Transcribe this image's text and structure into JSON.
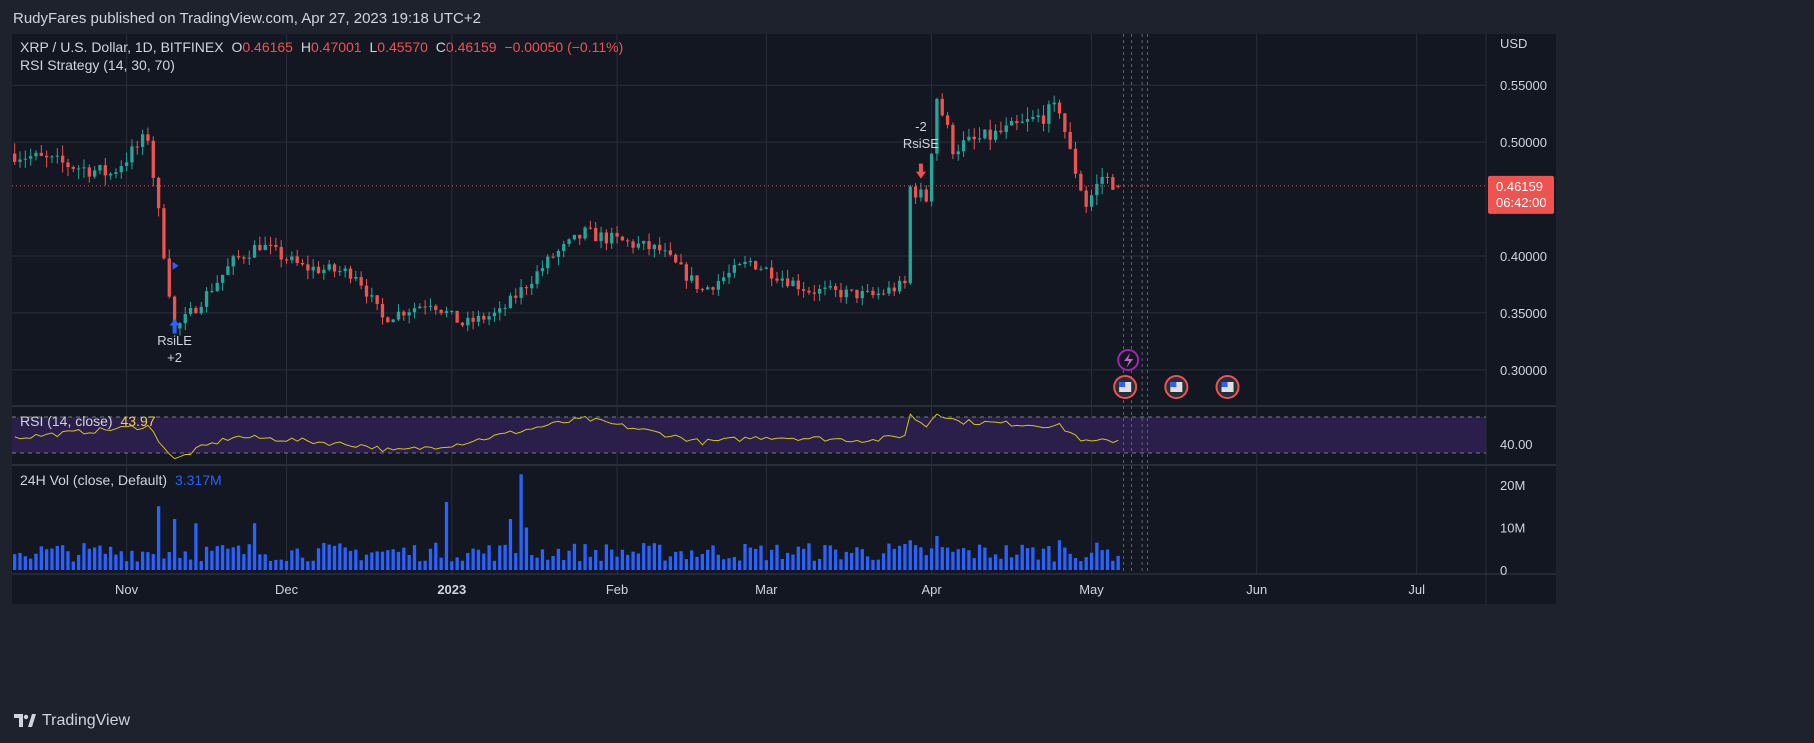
{
  "header": {
    "published": "RudyFares published on TradingView.com, Apr 27, 2023 19:18 UTC+2"
  },
  "footer": {
    "logo_text": "TradingView"
  },
  "colors": {
    "background": "#131722",
    "frame": "#1e222d",
    "grid": "#2a2e39",
    "up": "#26a69a",
    "down": "#ef5350",
    "rsi_line": "#d4c31a",
    "rsi_band": "#2a1f4a",
    "volume": "#2962ff"
  },
  "legend": {
    "symbol": "XRP / U.S. Dollar, 1D, BITFINEX",
    "o_label": "O",
    "o_value": "0.46165",
    "h_label": "H",
    "h_value": "0.47001",
    "l_label": "L",
    "l_value": "0.45570",
    "c_label": "C",
    "c_value": "0.46159",
    "change": "−0.00050 (−0.11%)",
    "strategy": "RSI Strategy (14, 30, 70)"
  },
  "rsi_panel": {
    "label": "RSI (14, close)",
    "value": "43.97"
  },
  "volume_panel": {
    "label": "24H Vol (close, Default)",
    "value": "3.317M"
  },
  "price_label": {
    "price": "0.46159",
    "countdown": "06:42:00"
  },
  "signals": {
    "long_label": "RsiLE",
    "long_qty": "+2",
    "short_label": "RsiSE",
    "short_qty": "-2"
  },
  "chart_data": {
    "type": "candlestick",
    "title": "XRP / U.S. Dollar, 1D, BITFINEX",
    "currency": "USD",
    "price_axis_ticks": [
      "0.55000",
      "0.50000",
      "0.40000",
      "0.35000",
      "0.30000"
    ],
    "price_axis_tick_values": [
      0.55,
      0.5,
      0.4,
      0.35,
      0.3
    ],
    "price_range": [
      0.27,
      0.595
    ],
    "x_tick_labels": [
      "Nov",
      "Dec",
      "2023",
      "Feb",
      "Mar",
      "Apr",
      "May",
      "Jun",
      "Jul"
    ],
    "x_range_days": [
      -21.5,
      255
    ],
    "x_tick_days": [
      0,
      30,
      61,
      92,
      120,
      151,
      181,
      212,
      242
    ],
    "last_close": 0.46159,
    "key_points": [
      {
        "day": -21,
        "close": 0.49
      },
      {
        "day": -3,
        "close": 0.472
      },
      {
        "day": 4,
        "close": 0.505
      },
      {
        "day": 9,
        "close": 0.335
      },
      {
        "day": 13,
        "close": 0.355
      },
      {
        "day": 20,
        "close": 0.395
      },
      {
        "day": 25,
        "close": 0.41
      },
      {
        "day": 33,
        "close": 0.39
      },
      {
        "day": 43,
        "close": 0.385
      },
      {
        "day": 48,
        "close": 0.345
      },
      {
        "day": 57,
        "close": 0.36
      },
      {
        "day": 63,
        "close": 0.34
      },
      {
        "day": 70,
        "close": 0.35
      },
      {
        "day": 80,
        "close": 0.4
      },
      {
        "day": 86,
        "close": 0.42
      },
      {
        "day": 100,
        "close": 0.405
      },
      {
        "day": 108,
        "close": 0.37
      },
      {
        "day": 117,
        "close": 0.395
      },
      {
        "day": 128,
        "close": 0.37
      },
      {
        "day": 140,
        "close": 0.365
      },
      {
        "day": 146,
        "close": 0.375
      },
      {
        "day": 147,
        "close": 0.46
      },
      {
        "day": 150,
        "close": 0.45
      },
      {
        "day": 152,
        "close": 0.54
      },
      {
        "day": 155,
        "close": 0.495
      },
      {
        "day": 162,
        "close": 0.505
      },
      {
        "day": 168,
        "close": 0.515
      },
      {
        "day": 175,
        "close": 0.53
      },
      {
        "day": 177,
        "close": 0.49
      },
      {
        "day": 180,
        "close": 0.445
      },
      {
        "day": 183,
        "close": 0.47
      },
      {
        "day": 186,
        "close": 0.4616
      }
    ],
    "rsi": {
      "levels": [
        30,
        70
      ],
      "tick": "40.00",
      "tick_value": 40,
      "range": [
        20,
        80
      ],
      "last": 43.97,
      "key_points": [
        {
          "day": -21,
          "v": 47
        },
        {
          "day": 4,
          "v": 60
        },
        {
          "day": 9,
          "v": 22
        },
        {
          "day": 14,
          "v": 36
        },
        {
          "day": 20,
          "v": 48
        },
        {
          "day": 30,
          "v": 45
        },
        {
          "day": 45,
          "v": 38
        },
        {
          "day": 50,
          "v": 32
        },
        {
          "day": 62,
          "v": 40
        },
        {
          "day": 80,
          "v": 62
        },
        {
          "day": 86,
          "v": 68
        },
        {
          "day": 100,
          "v": 52
        },
        {
          "day": 108,
          "v": 42
        },
        {
          "day": 120,
          "v": 48
        },
        {
          "day": 140,
          "v": 44
        },
        {
          "day": 146,
          "v": 50
        },
        {
          "day": 147,
          "v": 72
        },
        {
          "day": 150,
          "v": 60
        },
        {
          "day": 152,
          "v": 75
        },
        {
          "day": 156,
          "v": 65
        },
        {
          "day": 168,
          "v": 62
        },
        {
          "day": 175,
          "v": 60
        },
        {
          "day": 180,
          "v": 42
        },
        {
          "day": 186,
          "v": 43.97
        }
      ]
    },
    "volume": {
      "ticks": [
        "20M",
        "10M",
        "0"
      ],
      "tick_values": [
        20,
        10,
        0
      ],
      "unit": "M",
      "max": 24,
      "last": 3.317,
      "spikes": [
        {
          "day": 6,
          "v": 15
        },
        {
          "day": 9,
          "v": 12
        },
        {
          "day": 13,
          "v": 11
        },
        {
          "day": 24,
          "v": 11
        },
        {
          "day": 60,
          "v": 16
        },
        {
          "day": 72,
          "v": 12
        },
        {
          "day": 74,
          "v": 22.5
        },
        {
          "day": 75,
          "v": 10
        },
        {
          "day": 147,
          "v": 7
        },
        {
          "day": 152,
          "v": 8
        },
        {
          "day": 175,
          "v": 7
        }
      ]
    }
  }
}
